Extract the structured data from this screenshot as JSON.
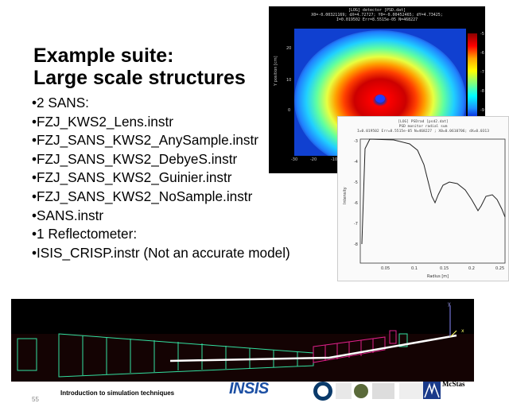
{
  "title": {
    "line1": "Example suite:",
    "line2": "Large scale structures"
  },
  "bullets": [
    "•2 SANS:",
    "•FZJ_KWS2_Lens.instr",
    "•FZJ_SANS_KWS2_AnySample.instr",
    "•FZJ_SANS_KWS2_DebyeS.instr",
    "•FZJ_SANS_KWS2_Guinier.instr",
    "•FZJ_SANS_KWS2_NoSample.instr",
    "•SANS.instr",
    "•1 Reflectometer:",
    "•ISIS_CRISP.instr (Not an accurate model)"
  ],
  "heatmap": {
    "header_line1": "[LOG] detector [PSD.dat]",
    "header_line2": "X0=-0.00321169; dX=4.72727; Y0=-0.00452465; dY=4.73425;",
    "header_line3": "I=0.019502 Err=8.5515e-05 N=468227",
    "ylabel": "Y position [cm]",
    "xticks": [
      "-30",
      "-20",
      "-10"
    ],
    "yticks": [
      "20",
      "10",
      "0"
    ],
    "colorbar_ticks": [
      "-5",
      "-6",
      "-7",
      "-8",
      "-9"
    ]
  },
  "lineplot": {
    "header_line1": "[LOG] PSDrad [psd2.dat]",
    "header_line2": "PSD monitor radial sum",
    "header_line3": "I=0.019502 Err=8.5515e-05 N=468227 ; X0=0.0610706; dX=0.0313",
    "ylabel": "Intensity",
    "xlabel": "Radius [m]",
    "xticks": [
      "0.05",
      "0.1",
      "0.15",
      "0.2",
      "0.25"
    ],
    "yticks": [
      "-3",
      "-4",
      "-5",
      "-6",
      "-7",
      "-8"
    ]
  },
  "instrument": {
    "axis_y": "y",
    "axis_x": "x"
  },
  "footer": {
    "text": "Introduction to simulation techniques",
    "page": "55",
    "insis": "INSIS",
    "mcstas": "McStas"
  },
  "colors": {
    "background": "#ffffff",
    "heat_bg": "#000000",
    "insis": "#1c4fa3",
    "green_geom": "#33e0a0",
    "magenta_geom": "#e0208a"
  }
}
